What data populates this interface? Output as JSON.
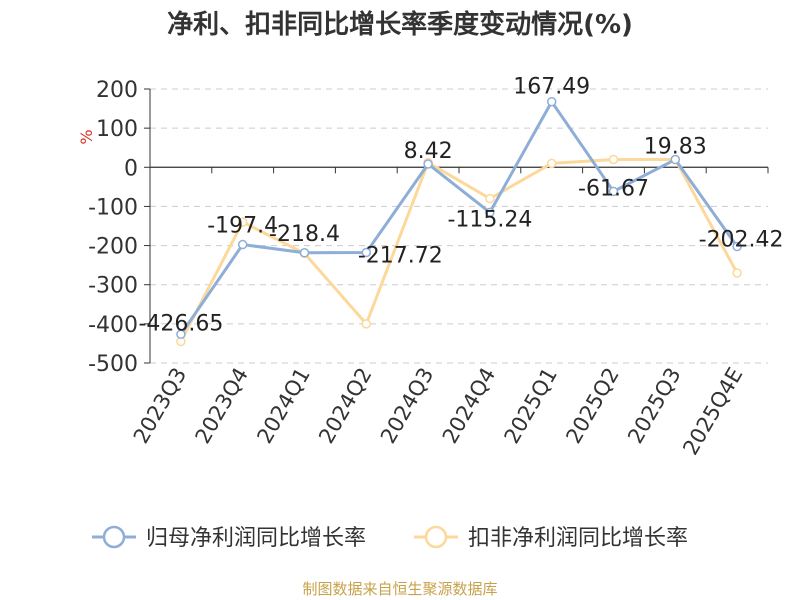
{
  "chart_data": {
    "type": "line",
    "title": "净利、扣非同比增长率季度变动情况(%)",
    "ylabel": "%",
    "xlabel": "",
    "ylim": [
      -500,
      200
    ],
    "yticks": [
      200,
      100,
      0,
      -100,
      -200,
      -300,
      -400,
      -500
    ],
    "grid": true,
    "legend_position": "bottom",
    "categories": [
      "2023Q3",
      "2023Q4",
      "2024Q1",
      "2024Q2",
      "2024Q3",
      "2024Q4",
      "2025Q1",
      "2025Q2",
      "2025Q3",
      "2025Q4E"
    ],
    "series": [
      {
        "name": "归母净利润同比增长率",
        "color": "#8eaed8",
        "values": [
          -426.65,
          -197.4,
          -218.4,
          -217.72,
          8.42,
          -115.24,
          167.49,
          -61.67,
          19.83,
          -202.42
        ],
        "data_labels": [
          "-426.65",
          "-197.4",
          "-218.4",
          "-217.72",
          "8.42",
          "-115.24",
          "167.49",
          "-61.67",
          "19.83",
          "-202.42"
        ]
      },
      {
        "name": "扣非净利润同比增长率",
        "color": "#fcd89b",
        "values": [
          -445,
          -140,
          -220,
          -400,
          12,
          -80,
          10,
          20,
          20,
          -270
        ]
      }
    ]
  },
  "footer": {
    "source": "制图数据来自恒生聚源数据库",
    "source_color": "#c8a24a"
  },
  "colors": {
    "unit_label": "#d93025",
    "grid": "#cccccc",
    "axis": "#333333"
  }
}
